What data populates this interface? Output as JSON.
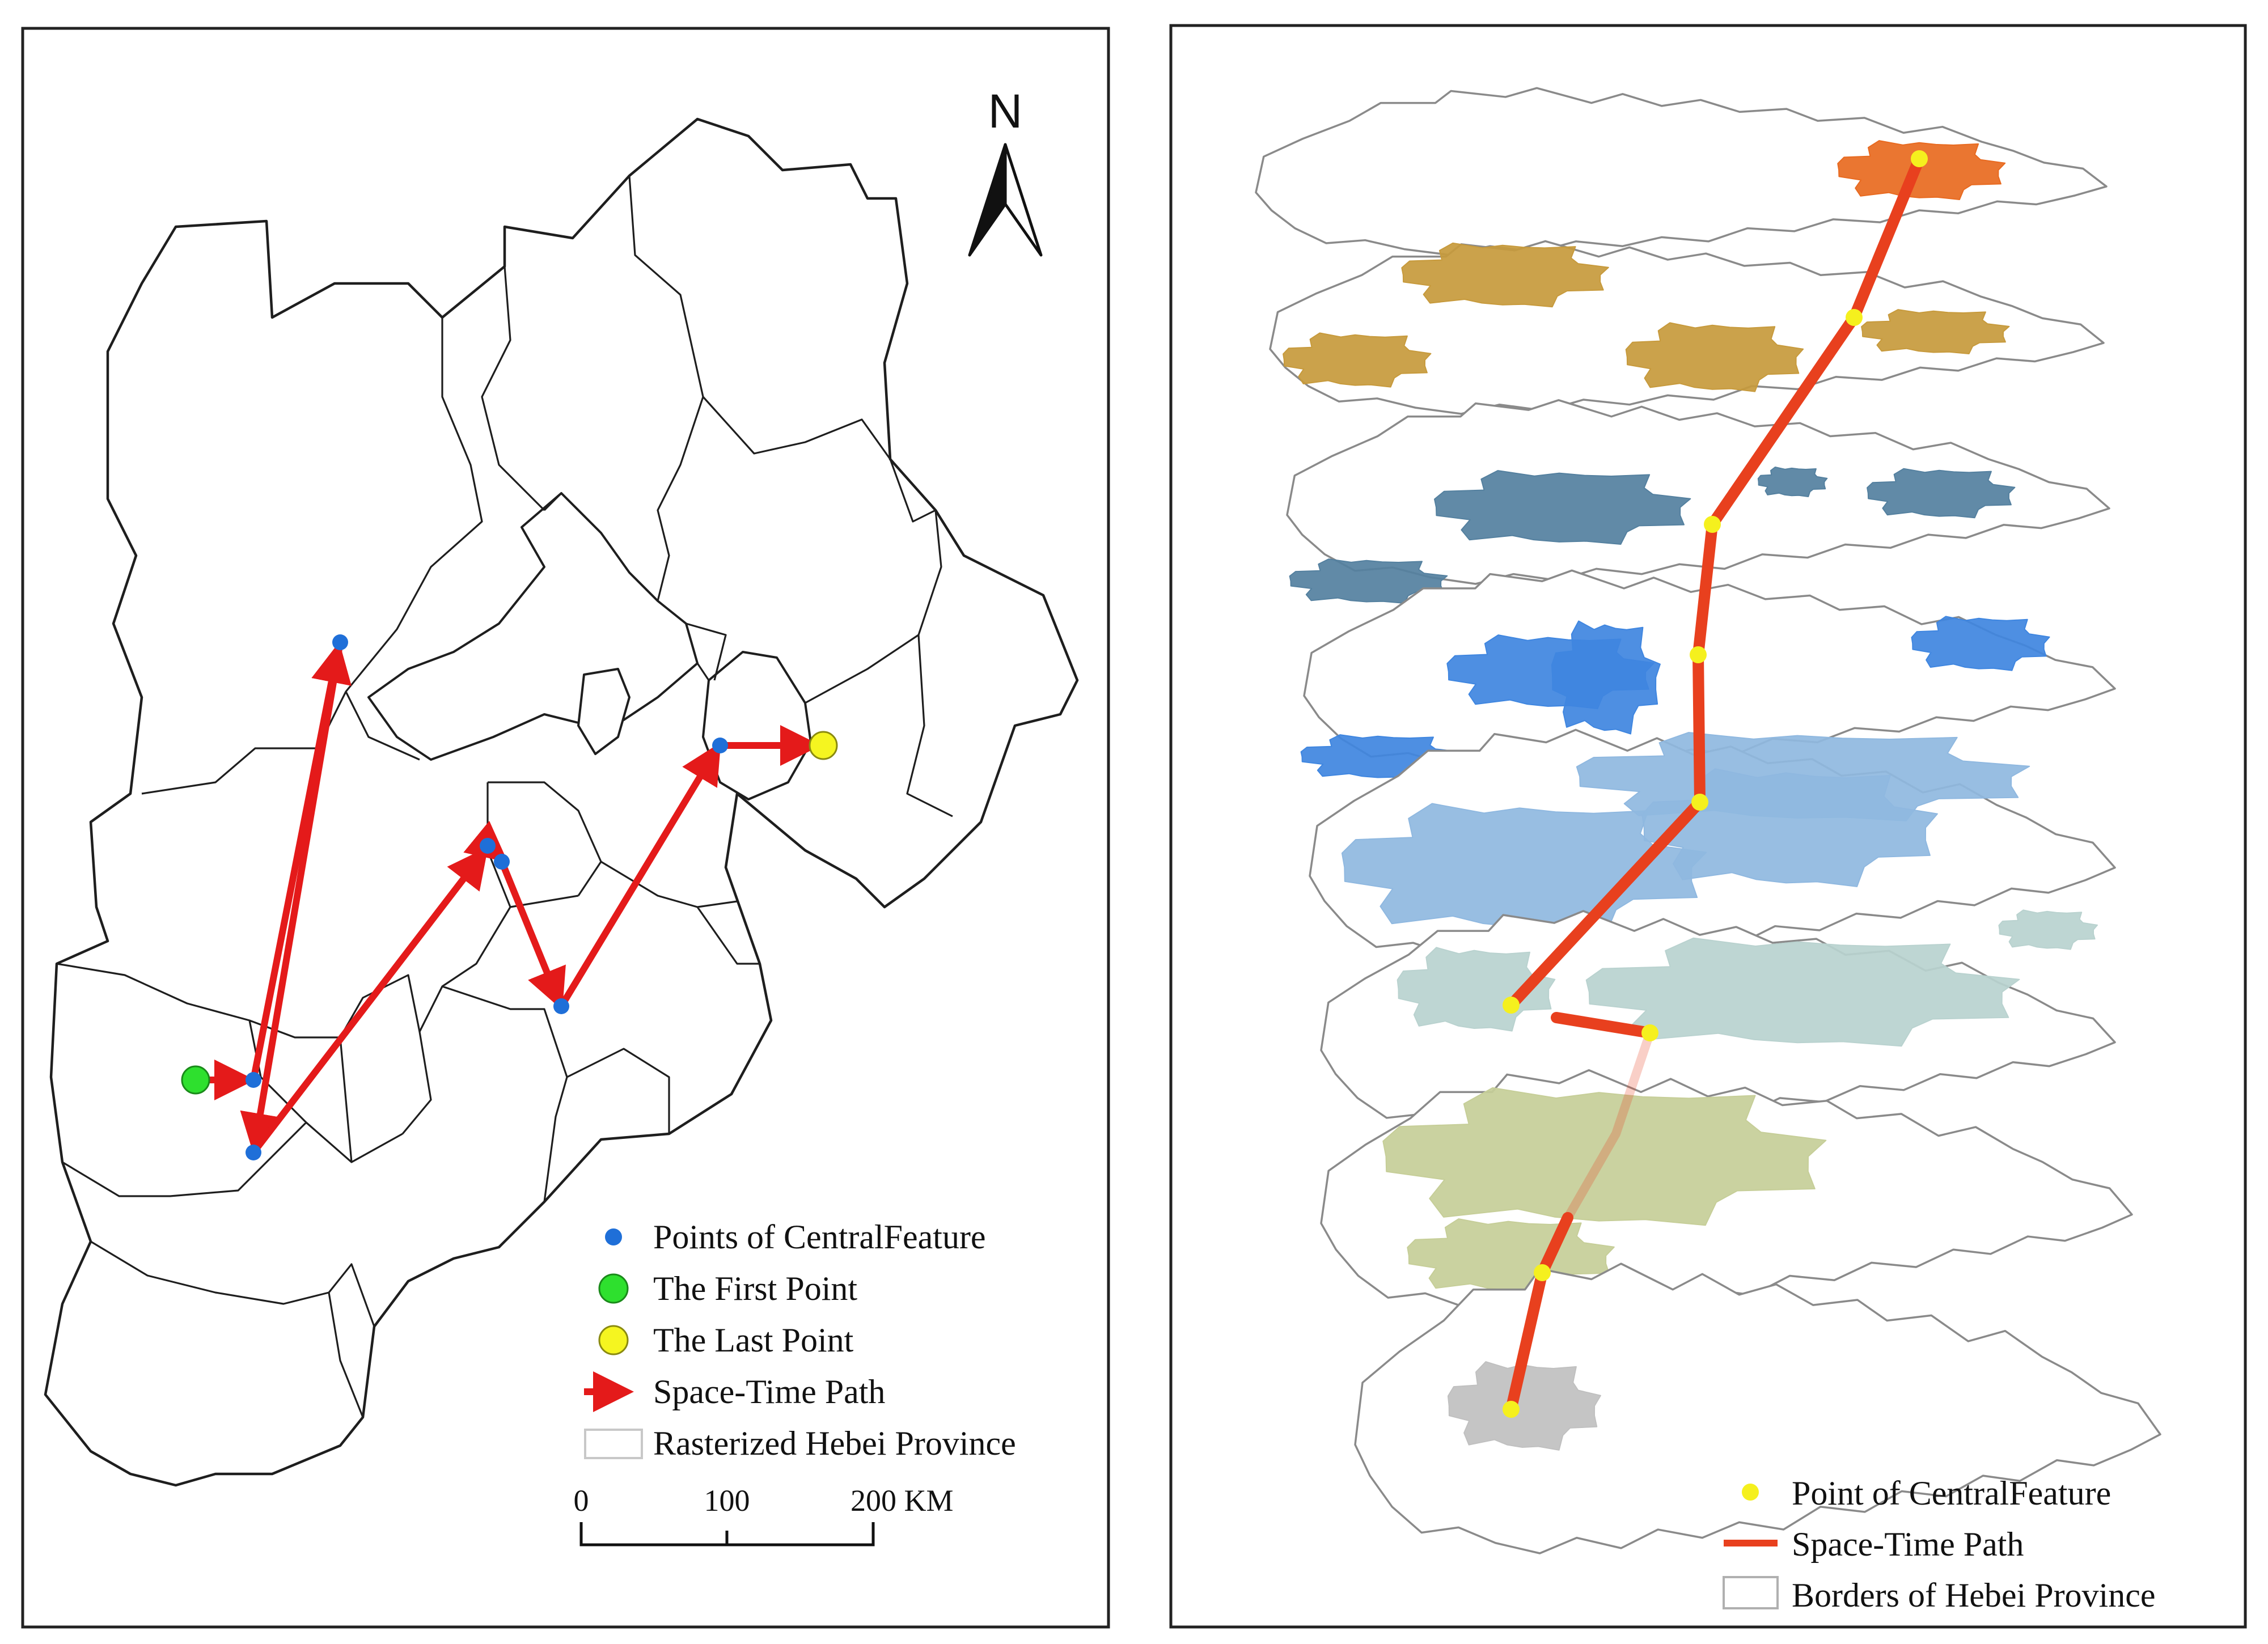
{
  "left_panel": {
    "north_label": "N",
    "legend": {
      "items": [
        {
          "key": "central",
          "label": "Points of CentralFeature",
          "color": "#1f6fd8"
        },
        {
          "key": "first",
          "label": "The First Point",
          "color": "#2ee02e"
        },
        {
          "key": "last",
          "label": "The Last Point",
          "color": "#f5f520"
        },
        {
          "key": "path",
          "label": "Space-Time Path",
          "color": "#e41a1a"
        },
        {
          "key": "raster",
          "label": "Rasterized Hebei Province",
          "color": "#c8c8c8"
        }
      ]
    },
    "scale_bar": {
      "ticks": [
        "0",
        "100",
        "200 KM"
      ]
    }
  },
  "right_panel": {
    "legend": {
      "items": [
        {
          "key": "central",
          "label": "Point of CentralFeature",
          "color": "#f5f01e"
        },
        {
          "key": "path",
          "label": "Space-Time Path",
          "color": "#e8401e"
        },
        {
          "key": "borders",
          "label": "Borders of Hebei Province",
          "color": "#b0b0b0"
        }
      ]
    },
    "layer_colors": [
      "#e86a20",
      "#c79a3c",
      "#54809f",
      "#3f86e0",
      "#8fb8e0",
      "#b9d2cf",
      "#c6ce98",
      "#c0c0c0"
    ]
  }
}
